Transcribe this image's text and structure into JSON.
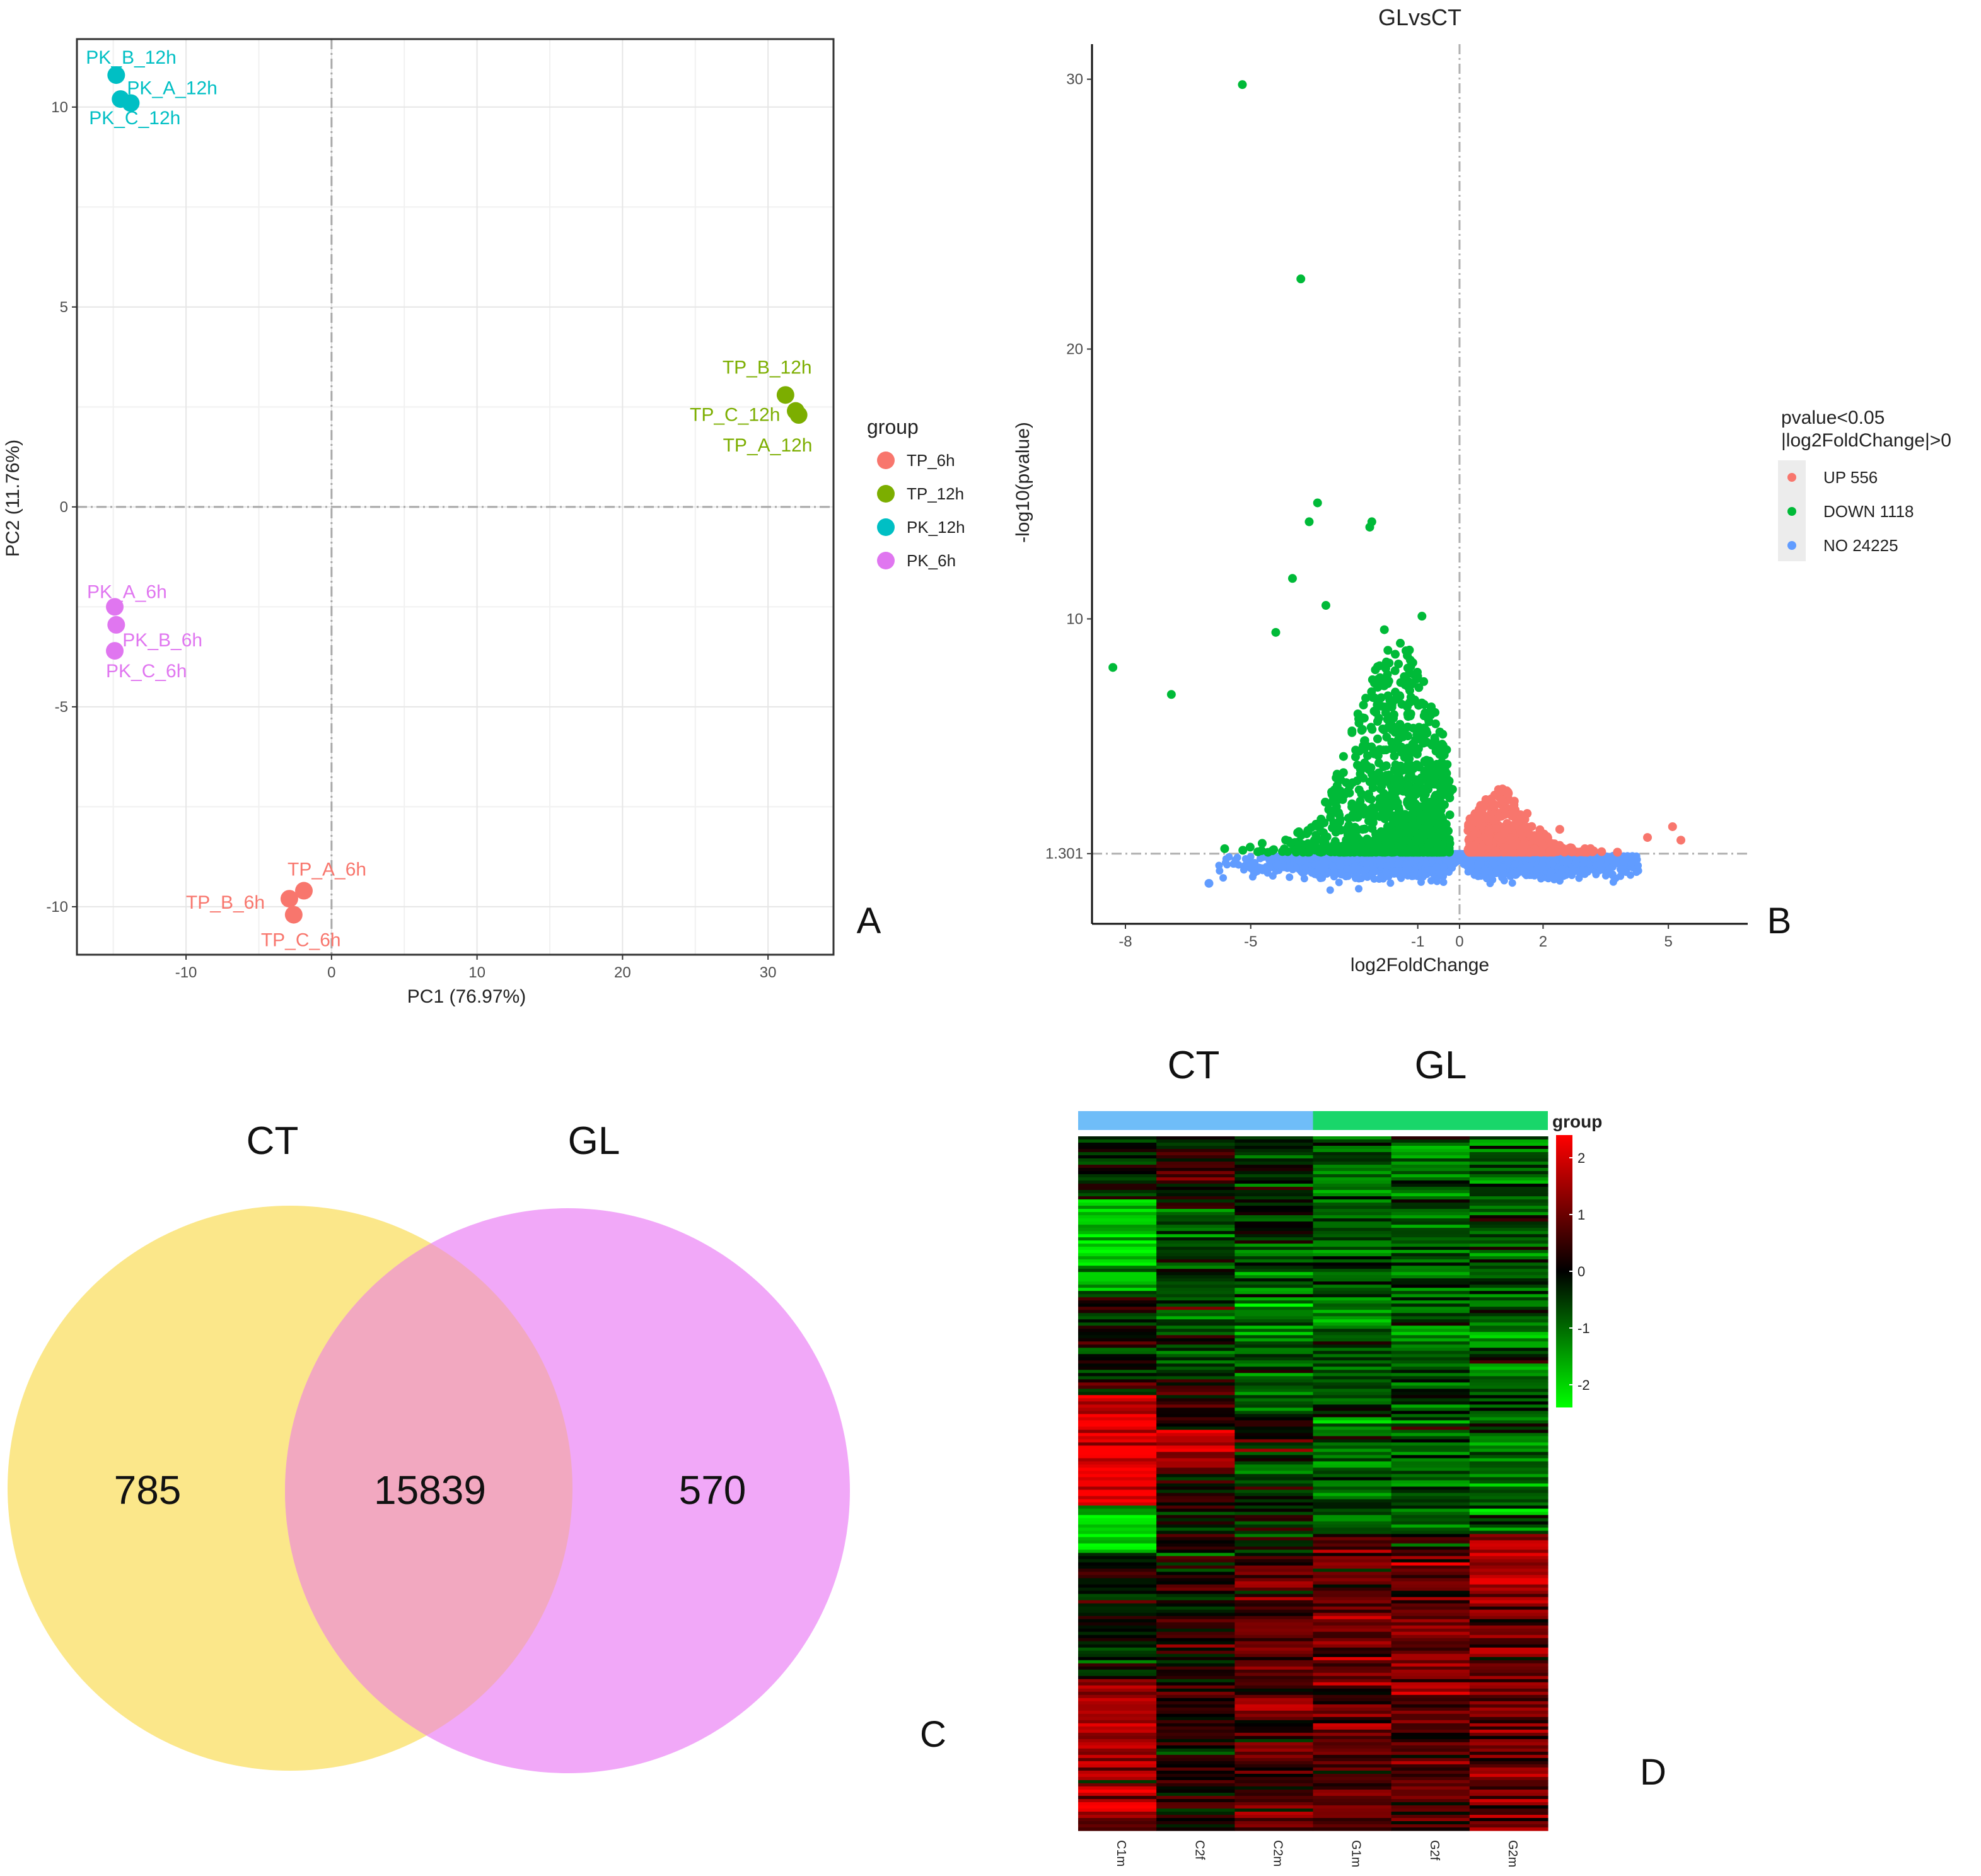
{
  "panels": {
    "a": "A",
    "b": "B",
    "c": "C",
    "d": "D"
  },
  "colors": {
    "tp6": "#F8766D",
    "tp12": "#7CAE00",
    "pk12": "#00BFC4",
    "pk6": "#E076F0",
    "up": "#F8766D",
    "down": "#00BA38",
    "no": "#619CFF",
    "venn_ct": "#FBE78A",
    "venn_gl": "#F1A8F8",
    "venn_overlap": "#F2A8C0",
    "heat_ct": "#6FBDF8",
    "heat_gl": "#19D66A"
  },
  "chart_data": [
    {
      "type": "scatter",
      "panel": "A",
      "title": "",
      "xlabel": "PC1 (76.97%)",
      "ylabel": "PC2 (11.76%)",
      "xlim": [
        -17.5,
        34.5
      ],
      "ylim": [
        -11.2,
        11.7
      ],
      "xticks": [
        -10,
        0,
        10,
        20,
        30
      ],
      "yticks": [
        -10,
        -5,
        0,
        5,
        10
      ],
      "legend_title": "group",
      "legend_position": "right",
      "series": [
        {
          "name": "TP_6h",
          "color_key": "tp6",
          "points": [
            {
              "label": "TP_A_6h",
              "x": -1.9,
              "y": -9.6
            },
            {
              "label": "TP_B_6h",
              "x": -2.9,
              "y": -9.8
            },
            {
              "label": "TP_C_6h",
              "x": -2.6,
              "y": -10.2
            }
          ]
        },
        {
          "name": "TP_12h",
          "color_key": "tp12",
          "points": [
            {
              "label": "TP_B_12h",
              "x": 31.2,
              "y": 2.8
            },
            {
              "label": "TP_C_12h",
              "x": 31.9,
              "y": 2.4
            },
            {
              "label": "TP_A_12h",
              "x": 32.1,
              "y": 2.3
            }
          ]
        },
        {
          "name": "PK_12h",
          "color_key": "pk12",
          "points": [
            {
              "label": "PK_B_12h",
              "x": -14.8,
              "y": 10.8
            },
            {
              "label": "PK_A_12h",
              "x": -13.8,
              "y": 10.1
            },
            {
              "label": "PK_C_12h",
              "x": -14.5,
              "y": 10.2
            }
          ]
        },
        {
          "name": "PK_6h",
          "color_key": "pk6",
          "points": [
            {
              "label": "PK_A_6h",
              "x": -14.9,
              "y": -2.5
            },
            {
              "label": "PK_B_6h",
              "x": -14.8,
              "y": -2.95
            },
            {
              "label": "PK_C_6h",
              "x": -14.9,
              "y": -3.6
            }
          ]
        }
      ]
    },
    {
      "type": "scatter",
      "panel": "B",
      "title": "GLvsCT",
      "xlabel": "log2FoldChange",
      "ylabel": "-log10(pvalue)",
      "xlim": [
        -8.8,
        6.9
      ],
      "ylim": [
        -1.3,
        31.3
      ],
      "xticks": [
        -8,
        -5,
        -1,
        0,
        2,
        5
      ],
      "yticks": [
        1.301,
        10,
        20,
        30
      ],
      "threshold_y": 1.301,
      "threshold_x": 0,
      "legend_title": [
        "pvalue<0.05",
        "|log2FoldChange|>0"
      ],
      "legend_position": "right",
      "legend": [
        {
          "label": "UP 556",
          "color_key": "up"
        },
        {
          "label": "DOWN 1118",
          "color_key": "down"
        },
        {
          "label": "NO 24225",
          "color_key": "no"
        }
      ],
      "counts": {
        "UP": 556,
        "DOWN": 1118,
        "NO": 24225
      },
      "highlighted_points": [
        {
          "x": -5.2,
          "y": 29.8
        },
        {
          "x": -3.8,
          "y": 22.6
        },
        {
          "x": -8.3,
          "y": 8.2
        },
        {
          "x": -6.9,
          "y": 7.2
        },
        {
          "x": -3.4,
          "y": 14.3
        },
        {
          "x": -3.6,
          "y": 13.6
        },
        {
          "x": -2.1,
          "y": 13.6
        },
        {
          "x": -2.15,
          "y": 13.4
        },
        {
          "x": -4.0,
          "y": 11.5
        },
        {
          "x": -3.2,
          "y": 10.5
        },
        {
          "x": -4.4,
          "y": 9.5
        },
        {
          "x": -0.9,
          "y": 10.1
        },
        {
          "x": -1.8,
          "y": 9.6
        },
        {
          "x": 1.0,
          "y": 3.3
        },
        {
          "x": 1.3,
          "y": 3.0
        },
        {
          "x": 2.4,
          "y": 2.2
        },
        {
          "x": 4.5,
          "y": 1.9
        },
        {
          "x": 5.1,
          "y": 2.3
        },
        {
          "x": 5.3,
          "y": 1.8
        },
        {
          "x": -6.0,
          "y": 0.2
        }
      ]
    },
    {
      "type": "venn",
      "panel": "C",
      "sets": [
        {
          "name": "CT",
          "only": 785,
          "color_key": "venn_ct"
        },
        {
          "name": "GL",
          "only": 570,
          "color_key": "venn_gl"
        }
      ],
      "intersection": 15839
    },
    {
      "type": "heatmap",
      "panel": "D",
      "column_groups": [
        {
          "name": "CT",
          "columns": [
            "C1m",
            "C2f",
            "C2m"
          ],
          "color_key": "heat_ct"
        },
        {
          "name": "GL",
          "columns": [
            "G1m",
            "G2f",
            "G2m"
          ],
          "color_key": "heat_gl"
        }
      ],
      "columns": [
        "C1m",
        "C2f",
        "C2m",
        "G1m",
        "G2f",
        "G2m"
      ],
      "colorbar_title": "group",
      "colorbar_ticks": [
        2,
        1,
        0,
        -1,
        -2
      ],
      "value_range": [
        -2.4,
        2.4
      ],
      "n_rows": 220
    }
  ]
}
